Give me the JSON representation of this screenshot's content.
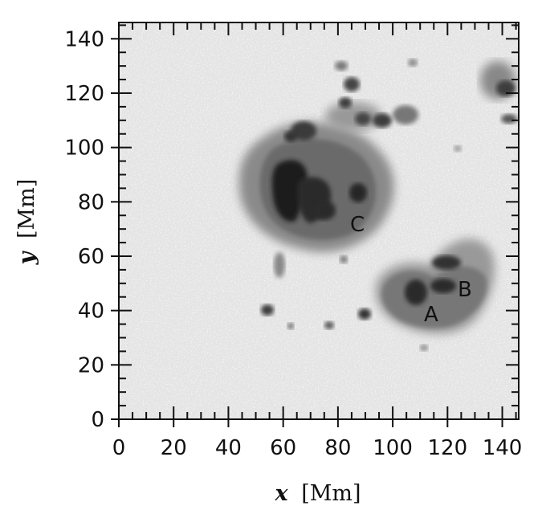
{
  "axes": {
    "x_ticks": [
      "0",
      "20",
      "40",
      "60",
      "80",
      "100",
      "120",
      "140"
    ],
    "y_ticks": [
      "0",
      "20",
      "40",
      "60",
      "80",
      "100",
      "120",
      "140"
    ],
    "x_var": "x",
    "x_unit": "[Mm]",
    "y_var": "y",
    "y_unit": "[Mm]",
    "range_mm": [
      0,
      146
    ]
  },
  "labels": {
    "a": "A",
    "b": "B",
    "c": "C"
  },
  "colors": {
    "background": "#e6e6e6",
    "umbra": "#1e1e1e",
    "penumbra": "#7a7a7a",
    "frame": "#111111"
  }
}
